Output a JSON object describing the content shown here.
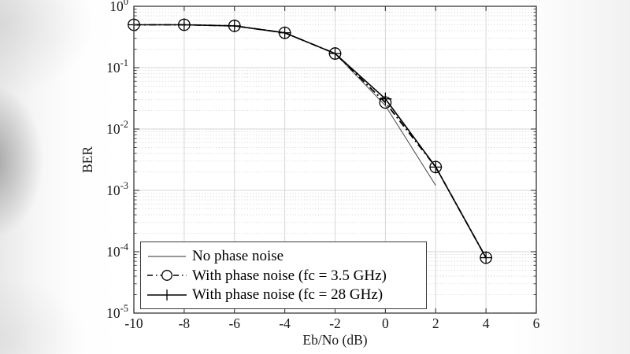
{
  "chart_data": {
    "type": "line",
    "title": "",
    "xlabel": "Eb/No (dB)",
    "ylabel": "BER",
    "x_scale": "linear",
    "y_scale": "log",
    "xlim": [
      -10,
      6
    ],
    "ylim": [
      1e-05,
      1
    ],
    "x_ticks": [
      -10,
      -8,
      -6,
      -4,
      -2,
      0,
      2,
      4,
      6
    ],
    "x_tick_labels": [
      "-10",
      "-8",
      "-6",
      "-4",
      "-2",
      "0",
      "2",
      "4",
      "6"
    ],
    "y_tick_base": "10",
    "y_tick_exponents": [
      "0",
      "-1",
      "-2",
      "-3",
      "-4",
      "-5"
    ],
    "grid": {
      "major": true,
      "minor_horizontal_dotted": true,
      "legend_position": "southwest"
    },
    "colors": {
      "axis": "#383838",
      "grid_major": "#d6d6d6",
      "grid_minor": "#c9c9c9",
      "text": "#1a1a1a",
      "series_black": "#000000",
      "series_gray": "#595959"
    },
    "series": [
      {
        "name": "No phase noise",
        "line": "solid-thin",
        "color": "#595959",
        "marker": "none",
        "x": [
          -10,
          -8,
          -6,
          -4,
          -2,
          0,
          2
        ],
        "y": [
          0.5,
          0.5,
          0.48,
          0.37,
          0.17,
          0.024,
          0.0012
        ]
      },
      {
        "name": "With phase noise (fc = 3.5 GHz)",
        "line": "dashdot",
        "color": "#000000",
        "marker": "circle",
        "x": [
          -10,
          -8,
          -6,
          -4,
          -2,
          0,
          2,
          4
        ],
        "y": [
          0.5,
          0.5,
          0.48,
          0.37,
          0.17,
          0.027,
          0.0024,
          8e-05
        ]
      },
      {
        "name": "With phase noise (fc = 28 GHz)",
        "line": "solid",
        "color": "#000000",
        "marker": "plus",
        "x": [
          -10,
          -8,
          -6,
          -4,
          -2,
          0,
          2,
          4
        ],
        "y": [
          0.5,
          0.5,
          0.48,
          0.37,
          0.17,
          0.031,
          0.0024,
          8e-05
        ]
      }
    ]
  }
}
